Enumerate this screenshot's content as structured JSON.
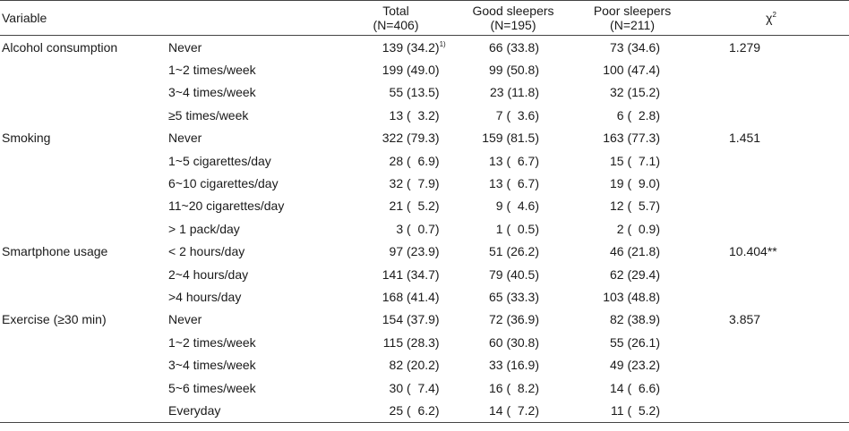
{
  "header": {
    "variable": "Variable",
    "total": "Total",
    "total_n": "(N=406)",
    "good": "Good sleepers",
    "good_n": "(N=195)",
    "poor": "Poor sleepers",
    "poor_n": "(N=211)",
    "chi": "χ",
    "chi_sup": "2"
  },
  "footnote_marker": "1)",
  "rows": [
    {
      "var": "Alcohol consumption",
      "cat": "Never",
      "t": "139",
      "tp": "(34.2)",
      "g": "66",
      "gp": "(33.8)",
      "p": "73",
      "pp": "(34.6)",
      "chi": "1.279"
    },
    {
      "var": "",
      "cat": "1~2 times/week",
      "t": "199",
      "tp": "(49.0)",
      "g": "99",
      "gp": "(50.8)",
      "p": "100",
      "pp": "(47.4)",
      "chi": ""
    },
    {
      "var": "",
      "cat": "3~4 times/week",
      "t": "55",
      "tp": "(13.5)",
      "g": "23",
      "gp": "(11.8)",
      "p": "32",
      "pp": "(15.2)",
      "chi": ""
    },
    {
      "var": "",
      "cat": "≥5 times/week",
      "t": "13",
      "tp": "(  3.2)",
      "g": "7",
      "gp": "(  3.6)",
      "p": "6",
      "pp": "(  2.8)",
      "chi": ""
    },
    {
      "var": "Smoking",
      "cat": "Never",
      "t": "322",
      "tp": "(79.3)",
      "g": "159",
      "gp": "(81.5)",
      "p": "163",
      "pp": "(77.3)",
      "chi": "1.451"
    },
    {
      "var": "",
      "cat": "1~5 cigarettes/day",
      "t": "28",
      "tp": "(  6.9)",
      "g": "13",
      "gp": "(  6.7)",
      "p": "15",
      "pp": "(  7.1)",
      "chi": ""
    },
    {
      "var": "",
      "cat": "6~10 cigarettes/day",
      "t": "32",
      "tp": "(  7.9)",
      "g": "13",
      "gp": "(  6.7)",
      "p": "19",
      "pp": "(  9.0)",
      "chi": ""
    },
    {
      "var": "",
      "cat": "11~20 cigarettes/day",
      "t": "21",
      "tp": "(  5.2)",
      "g": "9",
      "gp": "(  4.6)",
      "p": "12",
      "pp": "(  5.7)",
      "chi": ""
    },
    {
      "var": "",
      "cat": "> 1 pack/day",
      "t": "3",
      "tp": "(  0.7)",
      "g": "1",
      "gp": "(  0.5)",
      "p": "2",
      "pp": "(  0.9)",
      "chi": ""
    },
    {
      "var": "Smartphone usage",
      "cat": "< 2 hours/day",
      "t": "97",
      "tp": "(23.9)",
      "g": "51",
      "gp": "(26.2)",
      "p": "46",
      "pp": "(21.8)",
      "chi": "10.404**"
    },
    {
      "var": "",
      "cat": "2~4 hours/day",
      "t": "141",
      "tp": "(34.7)",
      "g": "79",
      "gp": "(40.5)",
      "p": "62",
      "pp": "(29.4)",
      "chi": ""
    },
    {
      "var": "",
      "cat": ">4 hours/day",
      "t": "168",
      "tp": "(41.4)",
      "g": "65",
      "gp": "(33.3)",
      "p": "103",
      "pp": "(48.8)",
      "chi": ""
    },
    {
      "var": "Exercise (≥30 min)",
      "cat": "Never",
      "t": "154",
      "tp": "(37.9)",
      "g": "72",
      "gp": "(36.9)",
      "p": "82",
      "pp": "(38.9)",
      "chi": "3.857"
    },
    {
      "var": "",
      "cat": "1~2 times/week",
      "t": "115",
      "tp": "(28.3)",
      "g": "60",
      "gp": "(30.8)",
      "p": "55",
      "pp": "(26.1)",
      "chi": ""
    },
    {
      "var": "",
      "cat": "3~4 times/week",
      "t": "82",
      "tp": "(20.2)",
      "g": "33",
      "gp": "(16.9)",
      "p": "49",
      "pp": "(23.2)",
      "chi": ""
    },
    {
      "var": "",
      "cat": "5~6 times/week",
      "t": "30",
      "tp": "(  7.4)",
      "g": "16",
      "gp": "(  8.2)",
      "p": "14",
      "pp": "(  6.6)",
      "chi": ""
    },
    {
      "var": "",
      "cat": "Everyday",
      "t": "25",
      "tp": "(  6.2)",
      "g": "14",
      "gp": "(  7.2)",
      "p": "11",
      "pp": "(  5.2)",
      "chi": ""
    }
  ]
}
